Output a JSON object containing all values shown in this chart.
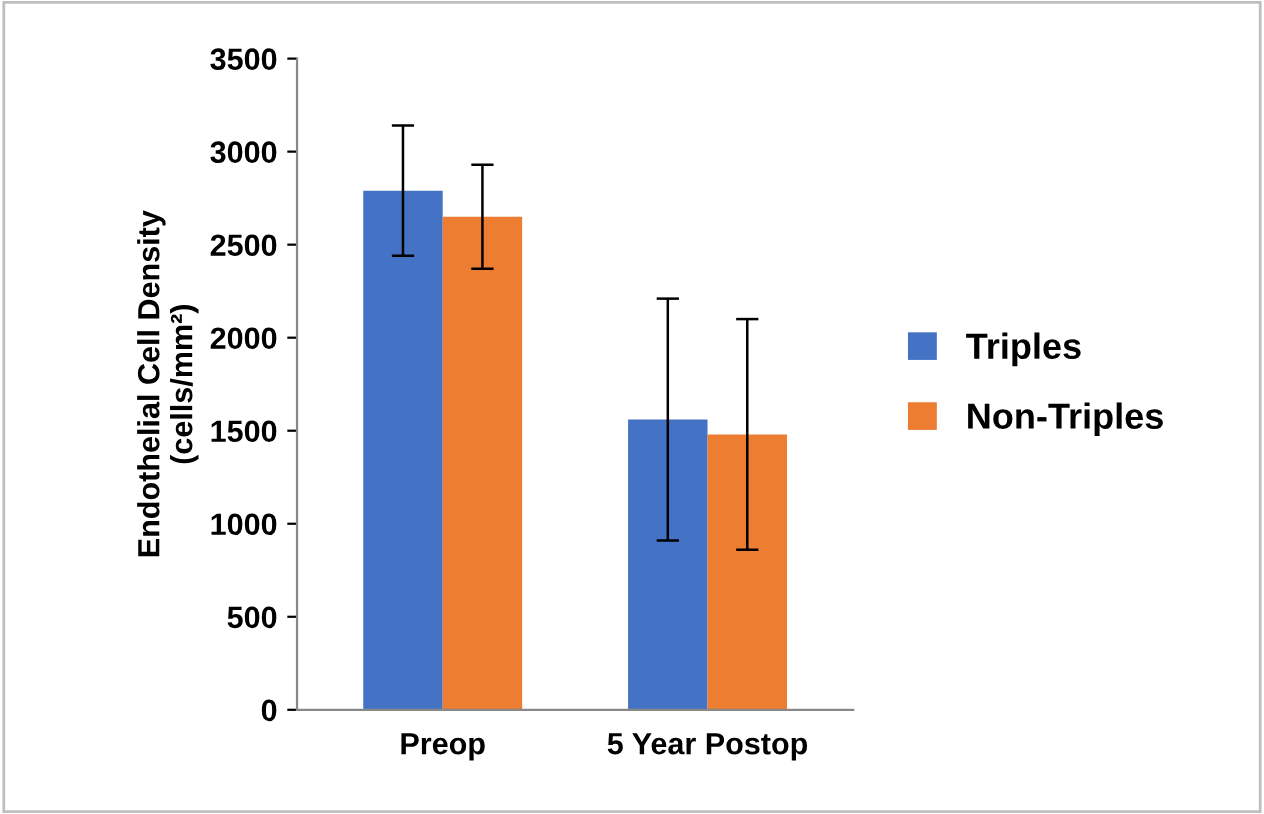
{
  "chart_data": {
    "type": "bar",
    "ylabel": "Endothelial Cell Density\n(cells/mm²)",
    "categories": [
      "Preop",
      "5 Year Postop"
    ],
    "series": [
      {
        "name": "Triples",
        "color": "#4472c4",
        "values": [
          2790,
          1560
        ],
        "errors": [
          350,
          650
        ]
      },
      {
        "name": "Non-Triples",
        "color": "#ed7d31",
        "values": [
          2650,
          1480
        ],
        "errors": [
          280,
          620
        ]
      }
    ],
    "ylim": [
      0,
      3500
    ],
    "yticks": [
      0,
      500,
      1000,
      1500,
      2000,
      2500,
      3000,
      3500
    ],
    "grid": false,
    "legend": "right"
  }
}
